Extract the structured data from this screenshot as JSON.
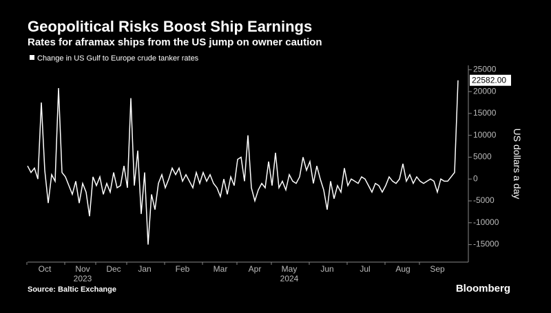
{
  "chart_data": {
    "type": "line",
    "title": "Geopolitical Risks Boost Ship Earnings",
    "subtitle": "Rates for aframax ships from the US jump on owner caution",
    "y_label": "US dollars a day",
    "source": "Source: Baltic Exchange",
    "brand": "Bloomberg",
    "categories": [
      null,
      null,
      null,
      null,
      null,
      "Oct",
      null,
      null,
      null,
      null,
      null,
      null,
      null,
      null,
      null,
      null,
      "Nov",
      null,
      null,
      null,
      null,
      null,
      null,
      null,
      null,
      "Dec",
      null,
      null,
      null,
      null,
      null,
      null,
      null,
      null,
      "Jan",
      null,
      null,
      null,
      null,
      null,
      null,
      null,
      null,
      null,
      null,
      "Feb",
      null,
      null,
      null,
      null,
      null,
      null,
      null,
      null,
      null,
      null,
      "Mar",
      null,
      null,
      null,
      null,
      null,
      null,
      null,
      null,
      null,
      "Apr",
      null,
      null,
      null,
      null,
      null,
      null,
      null,
      null,
      null,
      "May",
      null,
      null,
      null,
      null,
      null,
      null,
      null,
      null,
      null,
      null,
      "Jun",
      null,
      null,
      null,
      null,
      null,
      null,
      null,
      null,
      null,
      null,
      "Jul",
      null,
      null,
      null,
      null,
      null,
      null,
      null,
      null,
      null,
      null,
      "Aug",
      null,
      null,
      null,
      null,
      null,
      null,
      null,
      null,
      null,
      "Sep",
      null,
      null,
      null,
      null,
      null,
      null
    ],
    "year_labels": [
      "2023",
      "2024"
    ],
    "series": [
      {
        "name": "Change in US Gulf to Europe crude tanker rates",
        "color": "#ffffff",
        "values": [
          3000,
          1500,
          2500,
          0,
          17500,
          2000,
          -5500,
          1000,
          -500,
          20800,
          1500,
          500,
          -1500,
          -3500,
          -500,
          -5500,
          -1000,
          -3000,
          -8500,
          500,
          -1500,
          500,
          -3500,
          -1000,
          -3000,
          1500,
          -2000,
          -1500,
          3000,
          -2000,
          18500,
          -1500,
          6500,
          -8000,
          1500,
          -15000,
          -3500,
          -7000,
          -1000,
          1000,
          -2000,
          0,
          2500,
          1000,
          2500,
          -500,
          1000,
          -500,
          -2000,
          1500,
          -1000,
          1500,
          -500,
          1000,
          -1000,
          -2000,
          -4000,
          0,
          -3500,
          500,
          -1500,
          4500,
          5000,
          -500,
          10000,
          -2000,
          -5000,
          -2500,
          -1000,
          -2000,
          4000,
          -1500,
          6000,
          -2000,
          -500,
          -2500,
          1000,
          -500,
          -1000,
          500,
          5000,
          2000,
          4000,
          -1000,
          3000,
          0,
          -2500,
          -7000,
          -500,
          -4500,
          -1500,
          -3000,
          2500,
          -1500,
          0,
          -500,
          -1000,
          500,
          0,
          -1500,
          -3000,
          -1000,
          -1500,
          -3000,
          -1500,
          500,
          -500,
          -1000,
          0,
          3500,
          -500,
          1000,
          -1000,
          500,
          -500,
          -1000,
          -500,
          0,
          -500,
          -3000,
          0,
          -500,
          -500,
          500,
          1500,
          22582
        ],
        "value_labels": [
          null,
          null,
          null,
          null,
          null,
          null,
          null,
          null,
          null,
          null,
          null,
          null,
          null,
          null,
          null,
          null,
          null,
          null,
          null,
          null,
          null,
          null,
          null,
          null,
          null,
          null,
          null,
          null,
          null,
          null,
          null,
          null,
          null,
          null,
          null,
          null,
          null,
          null,
          null,
          null,
          null,
          null,
          null,
          null,
          null,
          null,
          null,
          null,
          null,
          null,
          null,
          null,
          null,
          null,
          null,
          null,
          null,
          null,
          null,
          null,
          null,
          null,
          null,
          null,
          null,
          null,
          null,
          null,
          null,
          null,
          null,
          null,
          null,
          null,
          null,
          null,
          null,
          null,
          null,
          null,
          null,
          null,
          null,
          null,
          null,
          null,
          null,
          null,
          null,
          null,
          null,
          null,
          null,
          null,
          null,
          null,
          null,
          null,
          null,
          null,
          null,
          null,
          null,
          null,
          null,
          null,
          null,
          null,
          null,
          null,
          null,
          null,
          null,
          null,
          null,
          null,
          null,
          null,
          null,
          null,
          null,
          null,
          null,
          null,
          null,
          "22582.00"
        ]
      }
    ],
    "ylim": [
      -19000,
      26000
    ],
    "yticks": [
      -15000,
      -10000,
      -5000,
      0,
      5000,
      10000,
      15000,
      20000,
      25000
    ]
  }
}
